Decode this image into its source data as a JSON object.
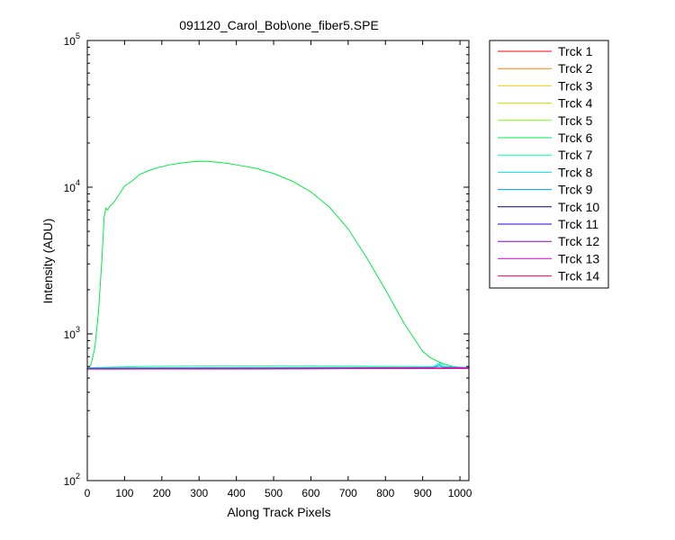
{
  "chart_data": {
    "type": "line",
    "title": "091120_Carol_Bob\\one_fiber5.SPE",
    "xlabel": "Along Track Pixels",
    "ylabel": "Intensity (ADU)",
    "xlim": [
      0,
      1024
    ],
    "ylim": [
      100,
      100000
    ],
    "yscale": "log",
    "grid": false,
    "legend_position": "outside-right",
    "x_ticks": [
      "0",
      "100",
      "200",
      "300",
      "400",
      "500",
      "600",
      "700",
      "800",
      "900",
      "1000"
    ],
    "y_ticks": [
      {
        "base": "10",
        "exp": "2"
      },
      {
        "base": "10",
        "exp": "3"
      },
      {
        "base": "10",
        "exp": "4"
      },
      {
        "base": "10",
        "exp": "5"
      }
    ],
    "series": [
      {
        "name": "Trck 1",
        "color": "#ff0000",
        "x": [
          0,
          1024
        ],
        "y": [
          578,
          582
        ]
      },
      {
        "name": "Trck 2",
        "color": "#ff7f00",
        "x": [
          0,
          1024
        ],
        "y": [
          580,
          585
        ]
      },
      {
        "name": "Trck 3",
        "color": "#ffcc00",
        "x": [
          0,
          1024
        ],
        "y": [
          578,
          583
        ]
      },
      {
        "name": "Trck 4",
        "color": "#ccdd00",
        "x": [
          0,
          1024
        ],
        "y": [
          580,
          584
        ]
      },
      {
        "name": "Trck 5",
        "color": "#7fff00",
        "x": [
          0,
          1024
        ],
        "y": [
          582,
          586
        ]
      },
      {
        "name": "Trck 6",
        "color": "#00ee44",
        "x": [
          0,
          10,
          20,
          30,
          40,
          45,
          50,
          55,
          60,
          70,
          80,
          90,
          100,
          120,
          140,
          160,
          180,
          200,
          220,
          250,
          280,
          300,
          320,
          350,
          380,
          400,
          450,
          500,
          550,
          600,
          650,
          700,
          750,
          800,
          850,
          900,
          920,
          940,
          960,
          980,
          1000,
          1024
        ],
        "y": [
          570,
          620,
          800,
          1400,
          3500,
          6200,
          7200,
          7000,
          7400,
          7800,
          8500,
          9300,
          10200,
          11000,
          12200,
          12800,
          13400,
          13800,
          14200,
          14600,
          14900,
          15000,
          15000,
          14800,
          14500,
          14200,
          13500,
          12400,
          11000,
          9300,
          7300,
          5200,
          3300,
          2000,
          1180,
          760,
          690,
          650,
          620,
          600,
          590,
          585
        ]
      },
      {
        "name": "Trck 7",
        "color": "#00ff99",
        "x": [
          0,
          150,
          300,
          500,
          700,
          900,
          1024
        ],
        "y": [
          588,
          600,
          603,
          604,
          602,
          598,
          592
        ]
      },
      {
        "name": "Trck 8",
        "color": "#00e5e5",
        "x": [
          0,
          900,
          930,
          945,
          960,
          1024
        ],
        "y": [
          586,
          592,
          600,
          632,
          598,
          590
        ]
      },
      {
        "name": "Trck 9",
        "color": "#0099ff",
        "x": [
          0,
          930,
          945,
          955,
          1024
        ],
        "y": [
          584,
          590,
          615,
          592,
          588
        ]
      },
      {
        "name": "Trck 10",
        "color": "#000080",
        "x": [
          0,
          1024
        ],
        "y": [
          577,
          583
        ]
      },
      {
        "name": "Trck 11",
        "color": "#3300cc",
        "x": [
          0,
          1024
        ],
        "y": [
          576,
          582
        ]
      },
      {
        "name": "Trck 12",
        "color": "#9900cc",
        "x": [
          0,
          1024
        ],
        "y": [
          577,
          581
        ]
      },
      {
        "name": "Trck 13",
        "color": "#ff00ff",
        "x": [
          0,
          1024
        ],
        "y": [
          576,
          582
        ]
      },
      {
        "name": "Trck 14",
        "color": "#ff0066",
        "x": [
          0,
          1024
        ],
        "y": [
          575,
          586
        ]
      }
    ]
  }
}
